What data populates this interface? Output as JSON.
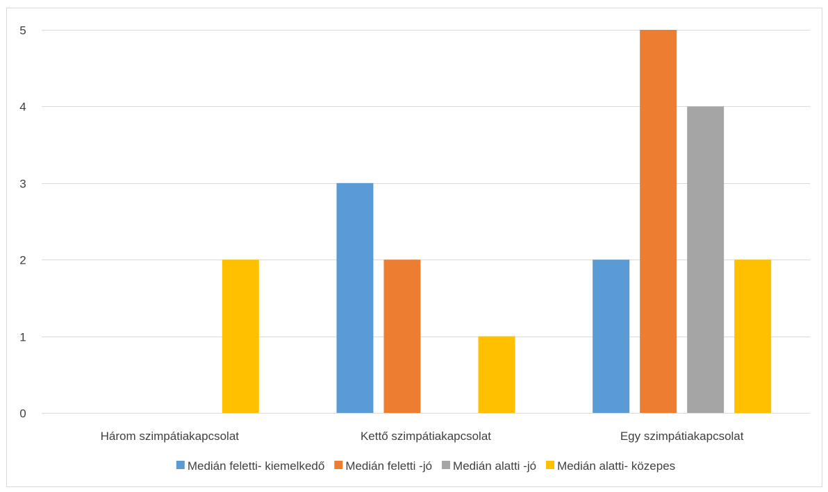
{
  "chart_data": {
    "type": "bar",
    "title": "",
    "xlabel": "",
    "ylabel": "",
    "ylim": [
      0,
      5
    ],
    "yticks": [
      0,
      1,
      2,
      3,
      4,
      5
    ],
    "grid": true,
    "legend_position": "bottom",
    "categories": [
      "Három szimpátiakapcsolat",
      "Kettő szimpátiakapcsolat",
      "Egy szimpátiakapcsolat"
    ],
    "series": [
      {
        "name": "Medián feletti- kiemelkedő",
        "color": "#5B9BD5",
        "values": [
          0,
          3,
          2
        ]
      },
      {
        "name": "Medián feletti -jó",
        "color": "#ED7D31",
        "values": [
          0,
          2,
          5
        ]
      },
      {
        "name": "Medián alatti -jó",
        "color": "#A5A5A5",
        "values": [
          0,
          0,
          4
        ]
      },
      {
        "name": "Medián alatti- közepes",
        "color": "#FFC000",
        "values": [
          2,
          1,
          2
        ]
      }
    ]
  }
}
